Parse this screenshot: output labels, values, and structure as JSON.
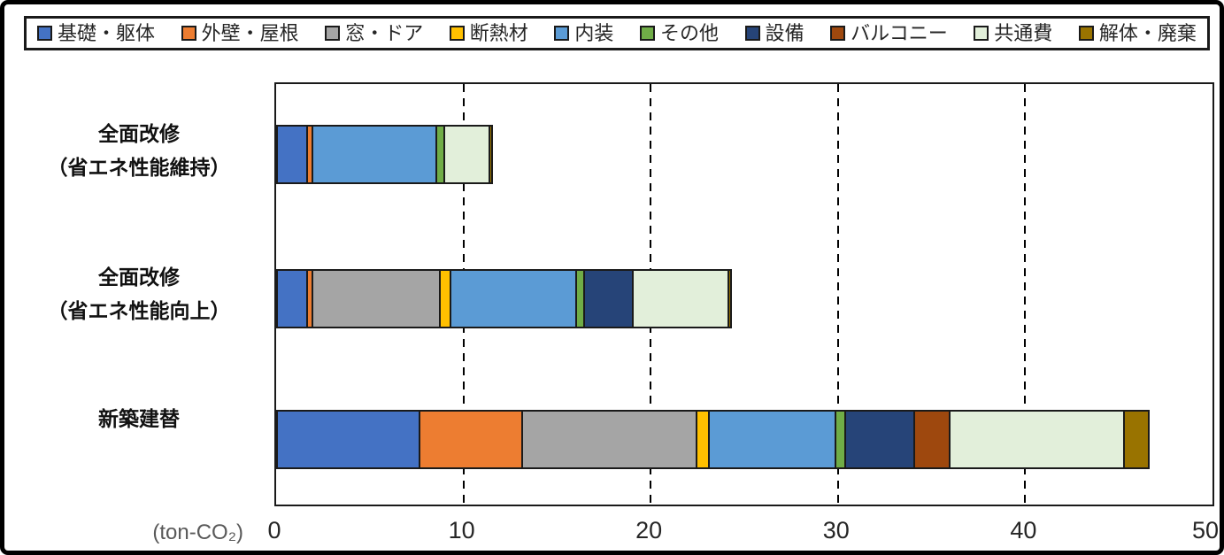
{
  "chart_data": {
    "type": "bar",
    "orientation": "horizontal",
    "stacked": true,
    "title": "",
    "legend_position": "top",
    "categories": [
      {
        "label_lines": [
          "全面改修",
          "（省エネ性能維持）"
        ],
        "total": 12.05
      },
      {
        "label_lines": [
          "全面改修",
          "（省エネ性能向上）"
        ],
        "total": 25.1
      },
      {
        "label_lines": [
          "新築建替"
        ],
        "total": 47.5
      }
    ],
    "series": [
      {
        "name": "基礎・躯体",
        "color": "#4472C4",
        "values": [
          1.7,
          1.7,
          7.7
        ]
      },
      {
        "name": "外壁・屋根",
        "color": "#ED7D31",
        "values": [
          0.4,
          0.4,
          5.6
        ]
      },
      {
        "name": "窓・ドア",
        "color": "#A5A5A5",
        "values": [
          0,
          6.9,
          9.4
        ]
      },
      {
        "name": "断熱材",
        "color": "#FFC000",
        "values": [
          0,
          0.65,
          0.75
        ]
      },
      {
        "name": "内装",
        "color": "#5B9BD5",
        "values": [
          6.7,
          6.8,
          6.85
        ]
      },
      {
        "name": "その他",
        "color": "#70AD47",
        "values": [
          0.5,
          0.5,
          0.6
        ]
      },
      {
        "name": "設備",
        "color": "#264478",
        "values": [
          0,
          2.7,
          3.8
        ]
      },
      {
        "name": "バルコニー",
        "color": "#9E480E",
        "values": [
          0,
          0,
          2.0
        ]
      },
      {
        "name": "共通費",
        "color": "#E2EFDA",
        "values": [
          2.5,
          5.2,
          9.4
        ]
      },
      {
        "name": "解体・廃棄",
        "color": "#997300",
        "values": [
          0.25,
          0.25,
          1.4
        ]
      }
    ],
    "x_axis": {
      "min": 0,
      "max": 50,
      "ticks": [
        0,
        10,
        20,
        30,
        40,
        50
      ],
      "gridlines": [
        10,
        20,
        30,
        40
      ],
      "gridline_style": "dashed",
      "unit_label": "(ton-CO₂)"
    }
  },
  "colors": {
    "segment_border": "#1a1a1a",
    "axis_text": "#262626",
    "unit_text": "#595959",
    "frame_border": "#000000"
  }
}
